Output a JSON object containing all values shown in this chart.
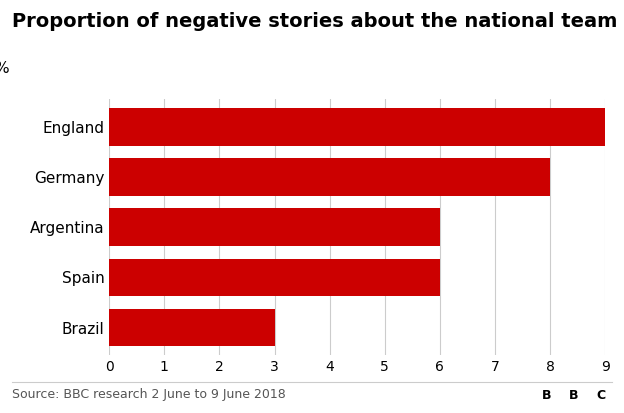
{
  "title": "Proportion of negative stories about the national team",
  "legend_label": "%",
  "categories": [
    "England",
    "Germany",
    "Argentina",
    "Spain",
    "Brazil"
  ],
  "values": [
    9,
    8,
    6,
    6,
    3
  ],
  "bar_color": "#cc0000",
  "xlim": [
    0,
    9
  ],
  "xticks": [
    0,
    1,
    2,
    3,
    4,
    5,
    6,
    7,
    8,
    9
  ],
  "source_text": "Source: BBC research 2 June to 9 June 2018",
  "bbc_text": "BBC",
  "background_color": "#ffffff",
  "grid_color": "#cccccc",
  "title_fontsize": 14,
  "label_fontsize": 11,
  "tick_fontsize": 10,
  "source_fontsize": 9,
  "bar_height": 0.75
}
